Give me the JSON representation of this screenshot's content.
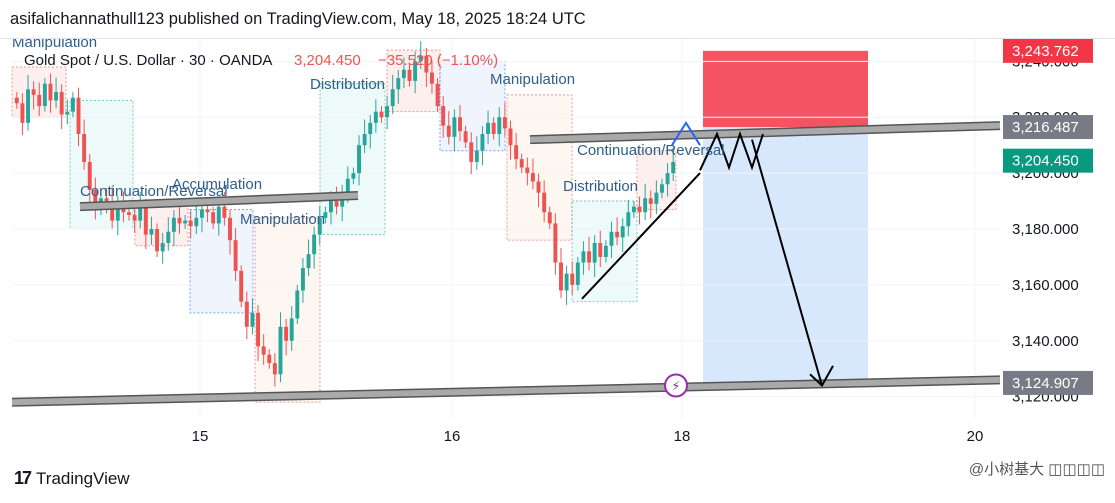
{
  "header": {
    "publisher_line": "asifalichannathull123 published on TradingView.com, May 18, 2025 18:24 UTC"
  },
  "footer": {
    "logo_text": "TradingView",
    "logo_mark": "17",
    "watermark": "@小树基大 ◫◫◫◫"
  },
  "colors": {
    "bull": "#26a69a",
    "bear": "#ef5350",
    "accent_blue": "#2962ff",
    "stop_red": "#f23645",
    "target_blue": "#d1e4fb"
  },
  "chart_data": {
    "type": "candlestick",
    "symbol_line": {
      "name": "Gold Spot / U.S. Dollar · 30 · OANDA",
      "price": "3,204.450",
      "change": "−35.520 (−1.10%)"
    },
    "y_ticks": [
      "3,240.000",
      "3,220.000",
      "3,200.000",
      "3,180.000",
      "3,160.000",
      "3,140.000",
      "3,120.000"
    ],
    "x_ticks": [
      "15",
      "16",
      "18",
      "20"
    ],
    "ylim": [
      3112,
      3248
    ],
    "price_labels": [
      {
        "text": "3,243.762",
        "value": 3243.762,
        "color": "#f23645"
      },
      {
        "text": "3,216.487",
        "value": 3216.487,
        "color": "#787b86"
      },
      {
        "text": "3,204.450",
        "value": 3204.45,
        "color": "#089981"
      },
      {
        "text": "3,124.907",
        "value": 3124.907,
        "color": "#787b86"
      }
    ],
    "annotations": [
      "Manipulation",
      "Distribution",
      "Manipulation",
      "Continuation/Reversal",
      "Accumulation",
      "Manipulation",
      "Continuation/Reversal",
      "Distribution"
    ],
    "position": {
      "entry": 3216.487,
      "stop": 3243.762,
      "target": 3124.907
    },
    "closes": [
      3225,
      3218,
      3230,
      3228,
      3224,
      3232,
      3226,
      3229,
      3221,
      3222,
      3227,
      3214,
      3204,
      3194,
      3187,
      3191,
      3190,
      3183,
      3189,
      3186,
      3185,
      3183,
      3188,
      3178,
      3180,
      3172,
      3175,
      3179,
      3184,
      3182,
      3183,
      3181,
      3184,
      3187,
      3186,
      3182,
      3188,
      3184,
      3176,
      3165,
      3154,
      3145,
      3150,
      3138,
      3135,
      3132,
      3128,
      3145,
      3140,
      3148,
      3158,
      3166,
      3171,
      3178,
      3184,
      3186,
      3190,
      3188,
      3193,
      3198,
      3200,
      3210,
      3214,
      3218,
      3222,
      3220,
      3224,
      3230,
      3234,
      3237,
      3233,
      3240,
      3242,
      3236,
      3232,
      3224,
      3217,
      3213,
      3220,
      3215,
      3211,
      3204,
      3208,
      3214,
      3218,
      3214,
      3220,
      3216,
      3210,
      3205,
      3202,
      3200,
      3197,
      3193,
      3186,
      3182,
      3168,
      3158,
      3164,
      3160,
      3168,
      3172,
      3168,
      3175,
      3170,
      3174,
      3179,
      3177,
      3181,
      3186,
      3188,
      3186,
      3191,
      3189,
      3193,
      3196,
      3200,
      3204
    ]
  }
}
